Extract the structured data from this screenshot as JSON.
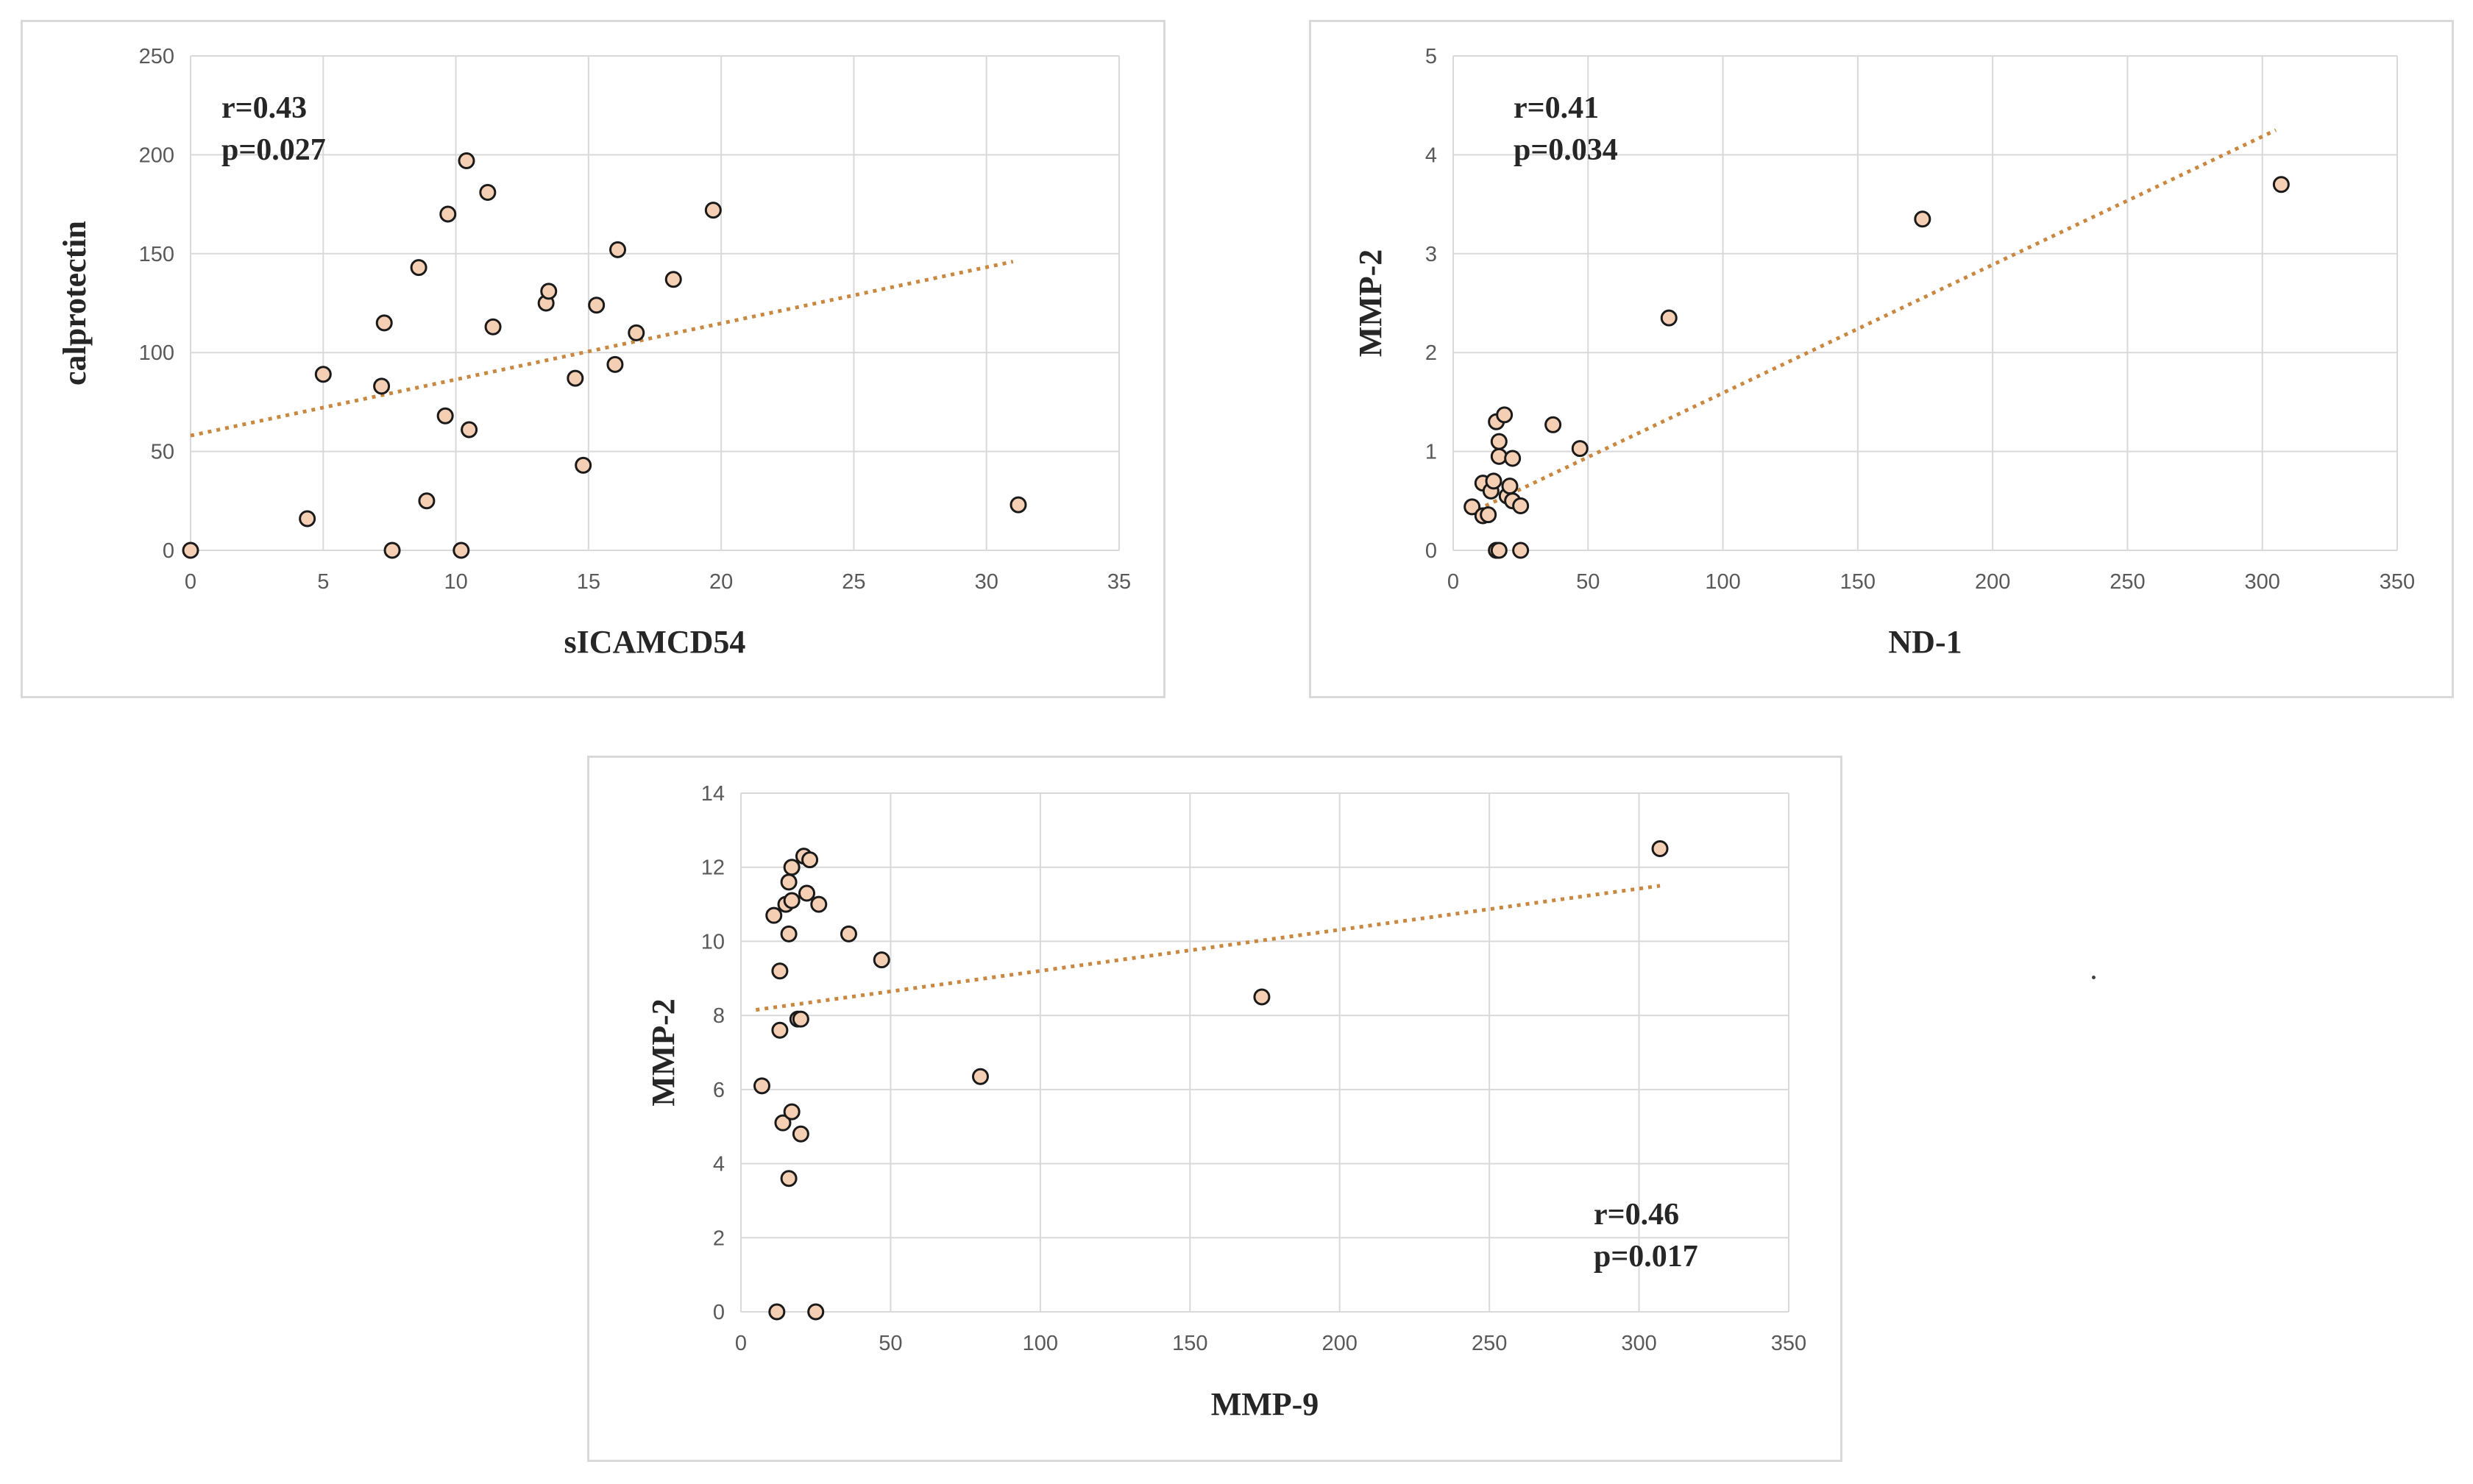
{
  "chart_data": [
    {
      "type": "scatter",
      "xlabel": "sICAMCD54",
      "ylabel": "calprotectin",
      "xlim": [
        0,
        35
      ],
      "ylim": [
        0,
        250
      ],
      "xticks": [
        0,
        5,
        10,
        15,
        20,
        25,
        30,
        35
      ],
      "yticks": [
        0,
        50,
        100,
        150,
        200,
        250
      ],
      "grid": true,
      "annotation": {
        "r": "r=0.43",
        "p": "p=0.027",
        "position": "top-left"
      },
      "trendline": {
        "style": "dotted",
        "x": [
          0,
          31
        ],
        "y": [
          58,
          146
        ]
      },
      "points": [
        [
          0,
          0
        ],
        [
          4.4,
          16
        ],
        [
          5,
          89
        ],
        [
          7.2,
          83
        ],
        [
          7.3,
          115
        ],
        [
          7.6,
          0
        ],
        [
          8.6,
          143
        ],
        [
          8.9,
          25
        ],
        [
          9.6,
          68
        ],
        [
          9.7,
          170
        ],
        [
          10.2,
          0
        ],
        [
          10.4,
          197
        ],
        [
          10.5,
          61
        ],
        [
          11.2,
          181
        ],
        [
          11.4,
          113
        ],
        [
          13.4,
          125
        ],
        [
          13.5,
          131
        ],
        [
          14.5,
          87
        ],
        [
          14.8,
          43
        ],
        [
          15.3,
          124
        ],
        [
          16,
          94
        ],
        [
          16.1,
          152
        ],
        [
          16.8,
          110
        ],
        [
          18.2,
          137
        ],
        [
          19.7,
          172
        ],
        [
          31.2,
          23
        ]
      ]
    },
    {
      "type": "scatter",
      "xlabel": "ND-1",
      "ylabel": "MMP-2",
      "xlim": [
        0,
        350
      ],
      "ylim": [
        0,
        5
      ],
      "xticks": [
        0,
        50,
        100,
        150,
        200,
        250,
        300,
        350
      ],
      "yticks": [
        0,
        1,
        2,
        3,
        4,
        5
      ],
      "grid": true,
      "annotation": {
        "r": "r=0.41",
        "p": "p=0.034",
        "position": "top-left"
      },
      "trendline": {
        "style": "dotted",
        "x": [
          12,
          305
        ],
        "y": [
          0.45,
          4.25
        ]
      },
      "points": [
        [
          7,
          0.44
        ],
        [
          11,
          0.68
        ],
        [
          11,
          0.35
        ],
        [
          13,
          0.36
        ],
        [
          14,
          0.6
        ],
        [
          15,
          0.7
        ],
        [
          16,
          0
        ],
        [
          17,
          0
        ],
        [
          17,
          0.95
        ],
        [
          17,
          1.1
        ],
        [
          16,
          1.3
        ],
        [
          19,
          1.37
        ],
        [
          20,
          0.55
        ],
        [
          21,
          0.65
        ],
        [
          22,
          0.5
        ],
        [
          22,
          0.93
        ],
        [
          25,
          0.45
        ],
        [
          25,
          0
        ],
        [
          37,
          1.27
        ],
        [
          47,
          1.03
        ],
        [
          80,
          2.35
        ],
        [
          174,
          3.35
        ],
        [
          307,
          3.7
        ]
      ]
    },
    {
      "type": "scatter",
      "xlabel": "MMP-9",
      "ylabel": "MMP-2",
      "xlim": [
        0,
        350
      ],
      "ylim": [
        0,
        14
      ],
      "xticks": [
        0,
        50,
        100,
        150,
        200,
        250,
        300,
        350
      ],
      "yticks": [
        0,
        2,
        4,
        6,
        8,
        10,
        12,
        14
      ],
      "grid": true,
      "annotation": {
        "r": "r=0.46",
        "p": "p=0.017",
        "position": "bottom-right"
      },
      "trendline": {
        "style": "dotted",
        "x": [
          5,
          307
        ],
        "y": [
          8.15,
          11.5
        ]
      },
      "points": [
        [
          7,
          6.1
        ],
        [
          11,
          10.7
        ],
        [
          12,
          0
        ],
        [
          13,
          9.2
        ],
        [
          13,
          7.6
        ],
        [
          14,
          5.1
        ],
        [
          15,
          11
        ],
        [
          16,
          11.6
        ],
        [
          16,
          10.2
        ],
        [
          16,
          3.6
        ],
        [
          17,
          11.1
        ],
        [
          17,
          12
        ],
        [
          17,
          5.4
        ],
        [
          19,
          7.9
        ],
        [
          20,
          7.9
        ],
        [
          20,
          4.8
        ],
        [
          21,
          12.3
        ],
        [
          22,
          11.3
        ],
        [
          23,
          12.2
        ],
        [
          25,
          0
        ],
        [
          26,
          11
        ],
        [
          36,
          10.2
        ],
        [
          47,
          9.5
        ],
        [
          80,
          6.35
        ],
        [
          174,
          8.5
        ],
        [
          307,
          12.5
        ]
      ]
    }
  ]
}
